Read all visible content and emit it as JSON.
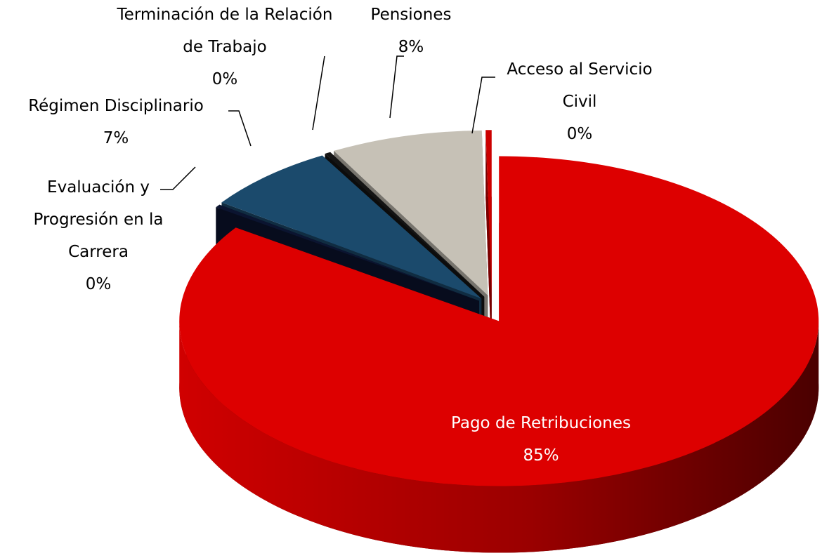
{
  "chart_data": {
    "type": "pie",
    "categories": [
      "Pago de Retribuciones",
      "Evaluación y Progresión en la Carrera",
      "Régimen Disciplinario",
      "Terminación de la Relación de Trabajo",
      "Pensiones",
      "Acceso al Servicio Civil"
    ],
    "values": [
      84.6,
      0.3,
      6.8,
      0.3,
      7.7,
      0.3
    ],
    "value_labels": [
      "85%",
      "0%",
      "7%",
      "0%",
      "8%",
      "0%"
    ],
    "colors": [
      "#dd0000",
      "#0b1430",
      "#1b4a6c",
      "#141414",
      "#c6c1b6",
      "#cc0000"
    ]
  }
}
